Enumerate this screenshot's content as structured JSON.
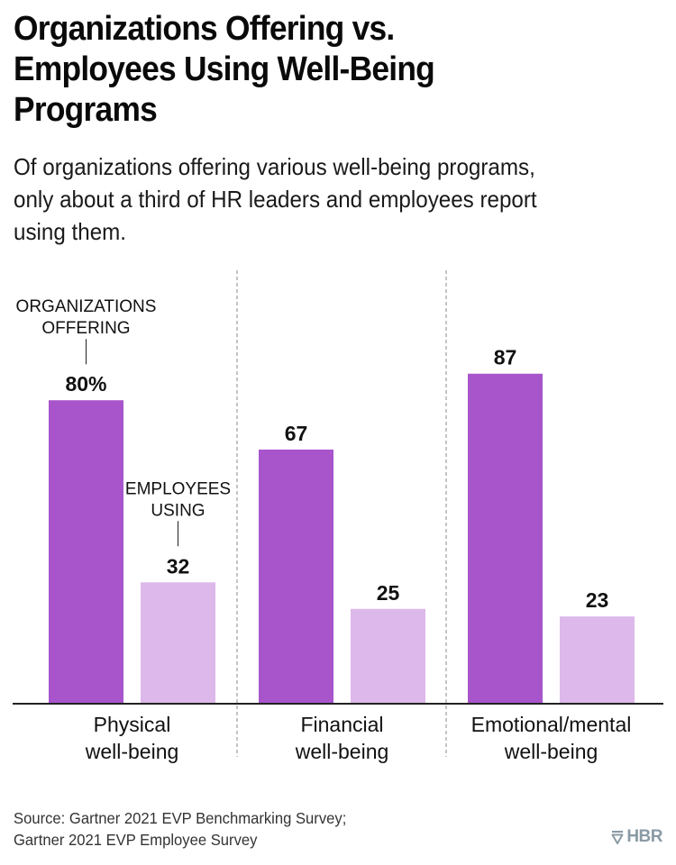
{
  "header": {
    "title": "Organizations Offering vs. Employees Using Well-Being Programs",
    "title_lines": [
      "Organizations Offering vs.",
      "Employees Using Well-Being",
      "Programs"
    ],
    "subtitle_lines": [
      "Of organizations offering various well-being programs,",
      "only about a third of HR leaders and employees report",
      "using them."
    ]
  },
  "colors": {
    "offering": "#a855cc",
    "using": "#ddb8ea",
    "axis": "#222222",
    "divider": "#888888",
    "logo": "#8a9aa5"
  },
  "chart_data": {
    "type": "bar",
    "title": "Organizations Offering vs. Employees Using Well-Being Programs",
    "xlabel": "",
    "ylabel": "",
    "unit": "%",
    "ylim": [
      0,
      100
    ],
    "grid": false,
    "categories": [
      [
        "Physical",
        "well-being"
      ],
      [
        "Financial",
        "well-being"
      ],
      [
        "Emotional/mental",
        "well-being"
      ]
    ],
    "series": [
      {
        "name": "Organizations offering",
        "annotation_lines": [
          "ORGANIZATIONS",
          "OFFERING"
        ],
        "values": [
          80,
          67,
          87
        ],
        "labels": [
          "80%",
          "67",
          "87"
        ]
      },
      {
        "name": "Employees using",
        "annotation_lines": [
          "EMPLOYEES",
          "USING"
        ],
        "values": [
          32,
          25,
          23
        ],
        "labels": [
          "32",
          "25",
          "23"
        ]
      }
    ],
    "legend": "inline annotations above first group"
  },
  "footer": {
    "source_lines": [
      "Source: Gartner 2021 EVP Benchmarking Survey;",
      "Gartner 2021 EVP Employee Survey"
    ],
    "logo_text": "HBR",
    "logo_icon": "hbr-shield-icon"
  }
}
